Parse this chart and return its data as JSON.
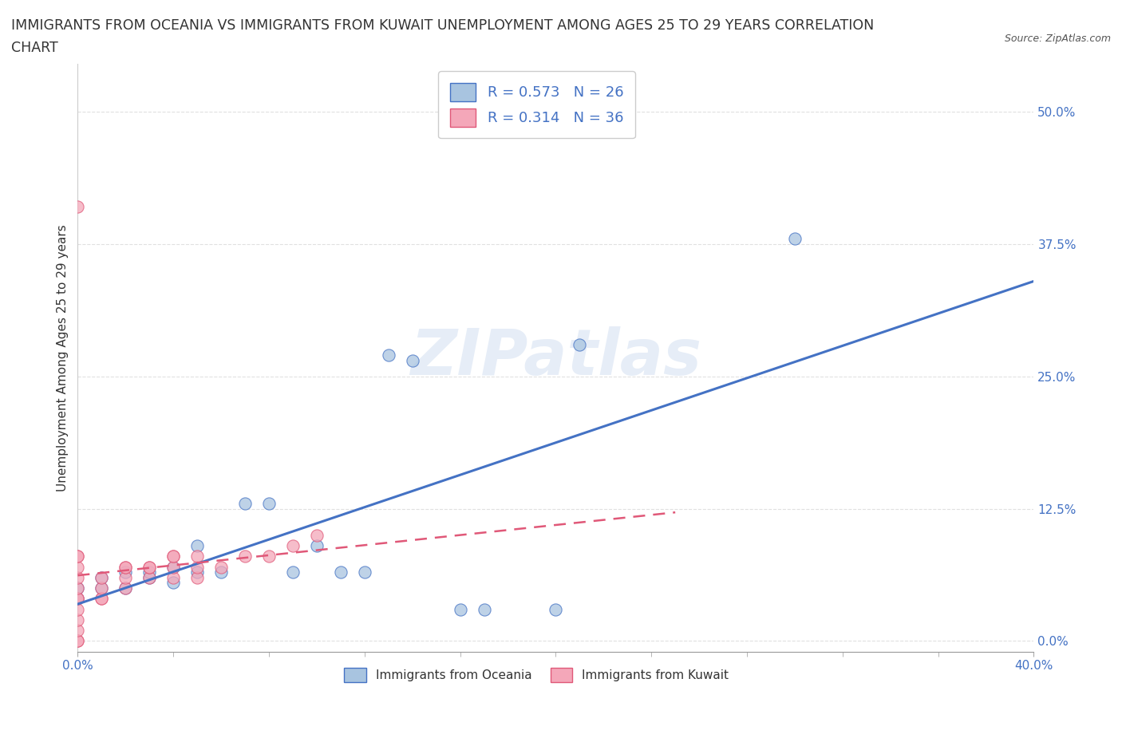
{
  "title_line1": "IMMIGRANTS FROM OCEANIA VS IMMIGRANTS FROM KUWAIT UNEMPLOYMENT AMONG AGES 25 TO 29 YEARS CORRELATION",
  "title_line2": "CHART",
  "source": "Source: ZipAtlas.com",
  "ylabel": "Unemployment Among Ages 25 to 29 years",
  "legend_label_1": "Immigrants from Oceania",
  "legend_label_2": "Immigrants from Kuwait",
  "R1": 0.573,
  "N1": 26,
  "R2": 0.314,
  "N2": 36,
  "color_oceania": "#a8c4e0",
  "color_kuwait": "#f4a7b9",
  "color_line_oceania": "#4472c4",
  "color_line_kuwait": "#e05878",
  "watermark": "ZIPatlas",
  "xlim": [
    0.0,
    0.4
  ],
  "ylim": [
    -0.01,
    0.545
  ],
  "xticks": [
    0.0,
    0.4
  ],
  "yticks": [
    0.0,
    0.125,
    0.25,
    0.375,
    0.5
  ],
  "xticklabels": [
    "0.0%",
    "40.0%"
  ],
  "yticklabels": [
    "0.0%",
    "12.5%",
    "25.0%",
    "37.5%",
    "50.0%"
  ],
  "oceania_x": [
    0.0,
    0.0,
    0.01,
    0.01,
    0.02,
    0.02,
    0.03,
    0.03,
    0.04,
    0.04,
    0.05,
    0.05,
    0.06,
    0.07,
    0.08,
    0.09,
    0.1,
    0.11,
    0.12,
    0.13,
    0.14,
    0.16,
    0.17,
    0.2,
    0.21,
    0.3
  ],
  "oceania_y": [
    0.04,
    0.05,
    0.05,
    0.06,
    0.05,
    0.065,
    0.06,
    0.065,
    0.055,
    0.07,
    0.065,
    0.09,
    0.065,
    0.13,
    0.13,
    0.065,
    0.09,
    0.065,
    0.065,
    0.27,
    0.265,
    0.03,
    0.03,
    0.03,
    0.28,
    0.38
  ],
  "kuwait_x": [
    0.0,
    0.0,
    0.0,
    0.0,
    0.0,
    0.0,
    0.0,
    0.0,
    0.0,
    0.0,
    0.0,
    0.0,
    0.0,
    0.01,
    0.01,
    0.01,
    0.01,
    0.02,
    0.02,
    0.02,
    0.02,
    0.03,
    0.03,
    0.03,
    0.04,
    0.04,
    0.04,
    0.04,
    0.05,
    0.05,
    0.05,
    0.06,
    0.07,
    0.08,
    0.09,
    0.1
  ],
  "kuwait_y": [
    0.0,
    0.0,
    0.01,
    0.02,
    0.03,
    0.04,
    0.04,
    0.05,
    0.06,
    0.07,
    0.08,
    0.08,
    0.41,
    0.04,
    0.04,
    0.05,
    0.06,
    0.05,
    0.06,
    0.07,
    0.07,
    0.06,
    0.07,
    0.07,
    0.06,
    0.07,
    0.08,
    0.08,
    0.06,
    0.07,
    0.08,
    0.07,
    0.08,
    0.08,
    0.09,
    0.1
  ],
  "tick_color": "#4472c4",
  "grid_color": "#e0e0e0",
  "title_color": "#333333",
  "title_fontsize": 12.5,
  "ylabel_fontsize": 11,
  "legend_fontsize": 13
}
